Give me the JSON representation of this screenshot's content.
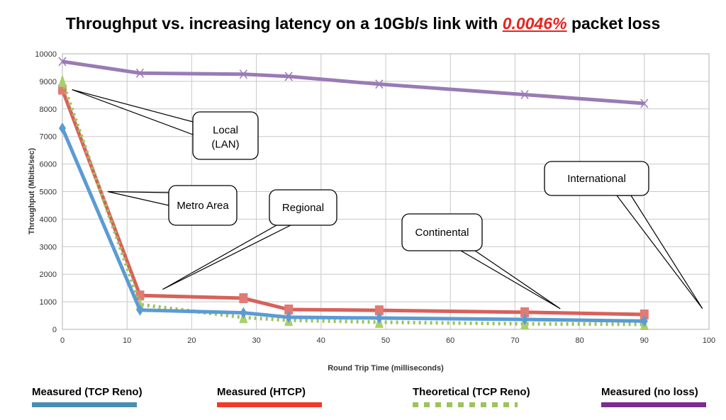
{
  "chart_data": {
    "type": "line",
    "title_prefix": "Throughput vs. increasing latency on a 10Gb/s link with ",
    "title_highlight": "0.0046%",
    "title_suffix": " packet loss",
    "xlabel": "Round Trip Time (milliseconds)",
    "ylabel": "Throughput (Mbits/sec)",
    "xlim": [
      0,
      100
    ],
    "ylim": [
      0,
      10000
    ],
    "xticks": [
      0,
      10,
      20,
      30,
      40,
      50,
      60,
      70,
      80,
      90,
      100
    ],
    "yticks": [
      0,
      1000,
      2000,
      3000,
      4000,
      5000,
      6000,
      7000,
      8000,
      9000,
      10000
    ],
    "grid": true,
    "legend_position": "bottom",
    "x": [
      0,
      12,
      28,
      35,
      49,
      71.5,
      90
    ],
    "series": [
      {
        "name": "Measured (TCP Reno)",
        "color": "#5b9bd5",
        "legend_color": "#4a8fb0",
        "style": "solid",
        "marker": "diamond",
        "values": [
          7300,
          700,
          600,
          440,
          410,
          360,
          300
        ]
      },
      {
        "name": "Measured (HTCP)",
        "color": "#d9605a",
        "legend_color": "#f03a2a",
        "style": "solid",
        "marker": "square",
        "values": [
          8700,
          1230,
          1130,
          720,
          690,
          620,
          540
        ]
      },
      {
        "name": "Theoretical (TCP Reno)",
        "color": "#9bc45a",
        "legend_color": "#9bc45a",
        "style": "dotted",
        "marker": "triangle",
        "values": [
          9000,
          900,
          430,
          330,
          260,
          200,
          180
        ]
      },
      {
        "name": "Measured (no loss)",
        "color": "#9a7bb5",
        "legend_color": "#7b2d8e",
        "style": "solid",
        "marker": "x",
        "values": [
          9720,
          9300,
          9260,
          9180,
          8900,
          8520,
          8200
        ]
      }
    ],
    "annotations": [
      {
        "text": "Local",
        "text2": "(LAN)",
        "target": [
          1.5,
          8700
        ]
      },
      {
        "text": "Metro Area",
        "text2": "",
        "target": [
          7,
          5000
        ]
      },
      {
        "text": "Regional",
        "text2": "",
        "target": [
          15.5,
          1450
        ]
      },
      {
        "text": "Continental",
        "text2": "",
        "target": [
          77,
          750
        ]
      },
      {
        "text": "International",
        "text2": "",
        "target": [
          99,
          750
        ]
      }
    ]
  }
}
